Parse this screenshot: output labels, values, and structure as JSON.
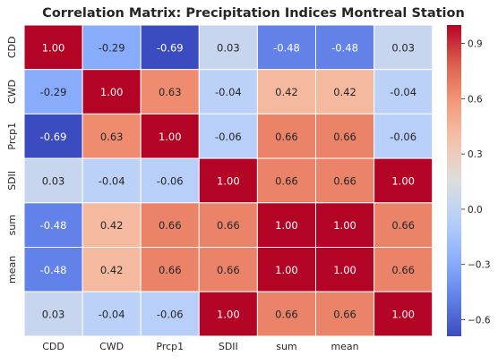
{
  "chart_data": {
    "type": "heatmap",
    "title": "Correlation Matrix: Precipitation Indices Montreal Station",
    "xlabel": "",
    "ylabel": "",
    "row_labels": [
      "CDD",
      "CWD",
      "Prcp1",
      "SDII",
      "sum",
      "mean",
      ""
    ],
    "col_labels": [
      "CDD",
      "CWD",
      "Prcp1",
      "SDII",
      "sum",
      "mean",
      ""
    ],
    "values": [
      [
        1.0,
        -0.29,
        -0.69,
        0.03,
        -0.48,
        -0.48,
        0.03
      ],
      [
        -0.29,
        1.0,
        0.63,
        -0.04,
        0.42,
        0.42,
        -0.04
      ],
      [
        -0.69,
        0.63,
        1.0,
        -0.06,
        0.66,
        0.66,
        -0.06
      ],
      [
        0.03,
        -0.04,
        -0.06,
        1.0,
        0.66,
        0.66,
        1.0
      ],
      [
        -0.48,
        0.42,
        0.66,
        0.66,
        1.0,
        1.0,
        0.66
      ],
      [
        -0.48,
        0.42,
        0.66,
        0.66,
        1.0,
        1.0,
        0.66
      ],
      [
        0.03,
        -0.04,
        -0.06,
        1.0,
        0.66,
        0.66,
        1.0
      ]
    ],
    "value_format": "0.00",
    "colormap": "coolwarm",
    "colorbar": {
      "vmin": -0.69,
      "vmax": 1.0,
      "ticks": [
        0.9,
        0.6,
        0.3,
        0.0,
        -0.3,
        -0.6
      ],
      "tick_labels": [
        "0.9",
        "0.6",
        "0.3",
        "0.0",
        "−0.3",
        "−0.6"
      ]
    },
    "grid": false,
    "cell_separator_color": "#ffffff"
  }
}
